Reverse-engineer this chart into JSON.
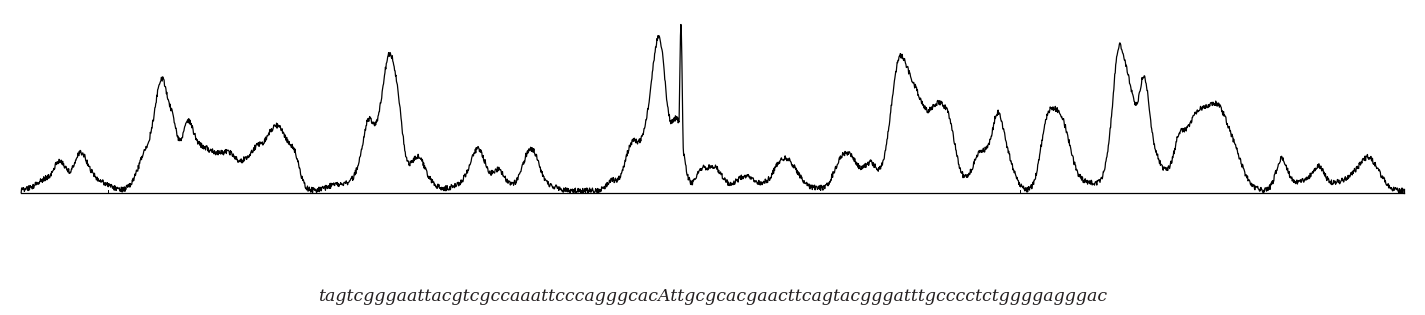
{
  "sequence_text": "tagtcgggaattacgtcgccaaattcccagggcacAttgcgcacgaacttcagtacgggatttgcccctctggggagggac",
  "text_color": "#231f20",
  "background_color": "#ffffff",
  "line_color": "#000000",
  "figsize": [
    14.25,
    3.15
  ],
  "dpi": 100,
  "seed": 42,
  "text_fontsize": 12.5
}
